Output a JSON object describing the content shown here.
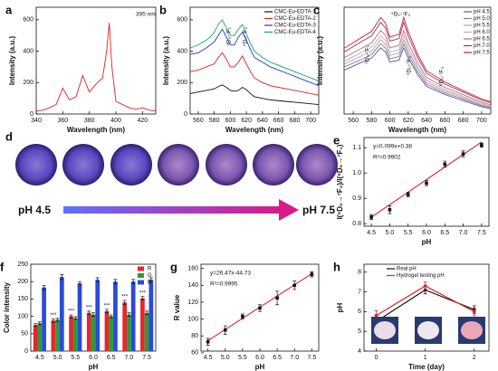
{
  "chart_data": [
    {
      "panel": "a",
      "type": "line",
      "x_label": "Wavelength (nm)",
      "y_label": "Intensity (a.u.)",
      "xlim": [
        340,
        430
      ],
      "xticks": [
        340,
        360,
        380,
        400,
        420
      ],
      "ylim": [
        0,
        680
      ],
      "yticks": [
        0,
        200,
        400,
        600
      ],
      "x": [
        340,
        345,
        350,
        355,
        360,
        365,
        370,
        375,
        380,
        385,
        390,
        393,
        395,
        397,
        400,
        405,
        410,
        415,
        420,
        425,
        430
      ],
      "series": [
        {
          "color": "#e02020",
          "values": [
            20,
            25,
            40,
            60,
            165,
            90,
            110,
            245,
            140,
            190,
            230,
            400,
            580,
            300,
            80,
            60,
            40,
            30,
            40,
            25,
            20
          ]
        }
      ],
      "annotations": [
        "395 nm"
      ]
    },
    {
      "panel": "b",
      "type": "line",
      "x_label": "Wavelength (nm)",
      "y_label": "Intensity (a.u.)",
      "xlim": [
        550,
        710
      ],
      "xticks": [
        560,
        580,
        600,
        620,
        640,
        660,
        680,
        700
      ],
      "ylim": [
        0,
        680
      ],
      "yticks": [
        0,
        200,
        400,
        600
      ],
      "x": [
        550,
        560,
        570,
        575,
        580,
        585,
        590,
        595,
        600,
        605,
        610,
        615,
        620,
        625,
        630,
        640,
        650,
        660,
        670,
        680,
        690,
        700,
        710
      ],
      "legend": "upper right",
      "series": [
        {
          "name": "CMC-Eu-EDTA-1",
          "color": "#111111",
          "values": [
            130,
            140,
            150,
            155,
            160,
            175,
            185,
            170,
            150,
            145,
            150,
            170,
            155,
            130,
            110,
            100,
            90,
            85,
            80,
            75,
            70,
            65,
            60
          ]
        },
        {
          "name": "CMC-Eu-EDTA-2",
          "color": "#e02020",
          "values": [
            270,
            280,
            300,
            310,
            320,
            360,
            390,
            350,
            300,
            300,
            330,
            370,
            320,
            270,
            230,
            200,
            180,
            170,
            160,
            150,
            140,
            130,
            120
          ]
        },
        {
          "name": "CMC-Eu-EDTA-3",
          "color": "#1f3fbf",
          "values": [
            380,
            390,
            420,
            440,
            460,
            500,
            540,
            490,
            440,
            440,
            490,
            520,
            470,
            410,
            360,
            330,
            300,
            280,
            260,
            240,
            220,
            200,
            180
          ]
        },
        {
          "name": "CMC-Eu-EDTA-4",
          "color": "#1a9a8a",
          "values": [
            420,
            440,
            470,
            490,
            520,
            570,
            600,
            550,
            500,
            500,
            540,
            570,
            510,
            450,
            400,
            360,
            330,
            310,
            290,
            270,
            250,
            230,
            210
          ]
        }
      ],
      "annotations": [
        "⁵D₀-⁷F₁",
        "⁵D₀-⁷F₂"
      ]
    },
    {
      "panel": "c",
      "type": "line",
      "x_label": "Wavelength (nm)",
      "y_label": "Intensity (a.u.)",
      "xlim": [
        550,
        710
      ],
      "xticks": [
        560,
        580,
        600,
        620,
        640,
        660,
        680,
        700
      ],
      "ylim": [
        50,
        460
      ],
      "yticks": [],
      "x": [
        550,
        560,
        570,
        580,
        590,
        595,
        600,
        610,
        615,
        620,
        630,
        640,
        660,
        680,
        700,
        710
      ],
      "legend": "upper right",
      "series": [
        {
          "name": "pH 4.5",
          "color": "#5a5a8a",
          "values": [
            218,
            234,
            250,
            265,
            304,
            289,
            250,
            257,
            304,
            265,
            203,
            156,
            125,
            101,
            78,
            70
          ]
        },
        {
          "name": "pH 5.0",
          "color": "#8a7aa0",
          "values": [
            230,
            246,
            262,
            279,
            320,
            303,
            262,
            271,
            320,
            279,
            213,
            164,
            131,
            107,
            82,
            74
          ]
        },
        {
          "name": "pH 5.5",
          "color": "#b0a0b8",
          "values": [
            241,
            258,
            275,
            292,
            335,
            318,
            275,
            284,
            335,
            292,
            224,
            172,
            138,
            112,
            86,
            77
          ]
        },
        {
          "name": "pH 6.0",
          "color": "#c8a8b0",
          "values": [
            252,
            270,
            288,
            306,
            351,
            333,
            288,
            297,
            351,
            306,
            234,
            180,
            144,
            117,
            90,
            81
          ]
        },
        {
          "name": "pH 6.5",
          "color": "#b07080",
          "values": [
            266,
            285,
            304,
            323,
            371,
            352,
            304,
            314,
            371,
            323,
            247,
            190,
            152,
            124,
            95,
            86
          ]
        },
        {
          "name": "pH 7.0",
          "color": "#a03050",
          "values": [
            288,
            309,
            330,
            350,
            402,
            381,
            330,
            340,
            402,
            350,
            268,
            206,
            165,
            134,
            103,
            93
          ]
        },
        {
          "name": "pH 7.5",
          "color": "#c02040",
          "values": [
            302,
            324,
            346,
            367,
            421,
            400,
            346,
            356,
            421,
            367,
            281,
            216,
            173,
            140,
            108,
            97
          ]
        }
      ],
      "annotations": [
        "⁵D₀-⁷F₁",
        "⁵D₀-⁷F₂",
        "⁵D₀-⁷F₃",
        "⁵D₀-⁷F₄"
      ]
    },
    {
      "panel": "e",
      "type": "scatter",
      "x_label": "pH",
      "y_label": "I(⁵D₀→⁷F₂)/I(⁵D₀→⁷F₁)",
      "xlim": [
        4.3,
        7.7
      ],
      "xticks": [
        4.5,
        {
          "value": 5,
          "label": "5.0"
        },
        5.5,
        {
          "value": 6,
          "label": "6.0"
        },
        6.5,
        {
          "value": 7,
          "label": "7.0"
        },
        7.5
      ],
      "ylim": [
        0.79,
        1.14
      ],
      "yticks": [
        0.8,
        0.9,
        {
          "value": 1,
          "label": "1.0"
        },
        1.1
      ],
      "x": [
        4.5,
        5,
        5.5,
        6,
        6.5,
        7,
        7.5
      ],
      "values": [
        0.826,
        0.855,
        0.915,
        0.96,
        1.035,
        1.075,
        1.11
      ],
      "errors": [
        0.01,
        0.015,
        0.008,
        0.01,
        0.012,
        0.012,
        0.008
      ],
      "color": "#111111",
      "fit": {
        "color": "#e02020",
        "x": [
          4.5,
          7.5
        ],
        "values": [
          0.8255,
          1.1225
        ]
      },
      "annotations": [
        "y=0.099x+0.38",
        "R²=0.9902"
      ]
    },
    {
      "panel": "f",
      "type": "bar",
      "x_label": "pH",
      "y_label": "Color intensity",
      "categories": [
        "4.5",
        "5.0",
        "5.5",
        "6.0",
        "6.5",
        "7.0",
        "7.5"
      ],
      "ylim": [
        0,
        250
      ],
      "yticks": [
        0,
        50,
        100,
        150,
        200,
        250
      ],
      "legend": "upper right",
      "series": [
        {
          "name": "R",
          "color": "#e8262a",
          "values": [
            75,
            88,
            100,
            110,
            115,
            140,
            152
          ],
          "errors": [
            4,
            5,
            4,
            5,
            5,
            6,
            5
          ]
        },
        {
          "name": "G",
          "color": "#2e9a3a",
          "values": [
            80,
            90,
            95,
            105,
            100,
            105,
            110
          ],
          "errors": [
            4,
            4,
            4,
            5,
            4,
            5,
            5
          ]
        },
        {
          "name": "B",
          "color": "#2a4bd7",
          "values": [
            183,
            213,
            195,
            205,
            200,
            200,
            205
          ],
          "errors": [
            6,
            7,
            5,
            6,
            6,
            6,
            6
          ]
        }
      ],
      "annotations": [
        "***",
        "***",
        "***",
        "***",
        "***",
        "***"
      ]
    },
    {
      "panel": "g",
      "type": "scatter",
      "x_label": "pH",
      "y_label": "R value",
      "xlim": [
        4.3,
        7.7
      ],
      "xticks": [
        4.5,
        {
          "value": 5,
          "label": "5.0"
        },
        5.5,
        {
          "value": 6,
          "label": "6.0"
        },
        6.5,
        {
          "value": 7,
          "label": "7.0"
        },
        7.5
      ],
      "ylim": [
        62,
        165
      ],
      "yticks": [
        60,
        80,
        100,
        120,
        140,
        160
      ],
      "x": [
        4.5,
        5,
        5.5,
        6,
        6.5,
        7,
        7.5
      ],
      "values": [
        73,
        87,
        103,
        113,
        125,
        140,
        153
      ],
      "errors": [
        4,
        5,
        3,
        4,
        8,
        5,
        3
      ],
      "color": "#111111",
      "fit": {
        "color": "#e02020",
        "x": [
          4.5,
          7.5
        ],
        "values": [
          74.38,
          153.8
        ]
      },
      "annotations": [
        "y=26.47x-44.73",
        "R²=0.9995"
      ]
    },
    {
      "panel": "h",
      "type": "line",
      "x_label": "Time (day)",
      "y_label": "pH",
      "xlim": [
        -0.25,
        2.3
      ],
      "xticks": [
        0,
        1,
        2
      ],
      "ylim": [
        4,
        8.4
      ],
      "yticks": [
        4,
        5,
        6,
        7,
        8
      ],
      "x": [
        0,
        1,
        2
      ],
      "legend": "upper center",
      "markers": true,
      "series": [
        {
          "name": "Real pH",
          "color": "#111111",
          "values": [
            5.5,
            7.1,
            6.1
          ],
          "errors": [
            0.3,
            0.2,
            0.2
          ]
        },
        {
          "name": "Hydrogel testing pH",
          "color": "#e02020",
          "values": [
            5.8,
            7.3,
            6.0
          ],
          "errors": [
            0.25,
            0.2,
            0.2
          ]
        }
      ]
    }
  ],
  "photo_strip": {
    "panel": "d",
    "start": "pH 4.5",
    "end": "pH 7.5"
  }
}
